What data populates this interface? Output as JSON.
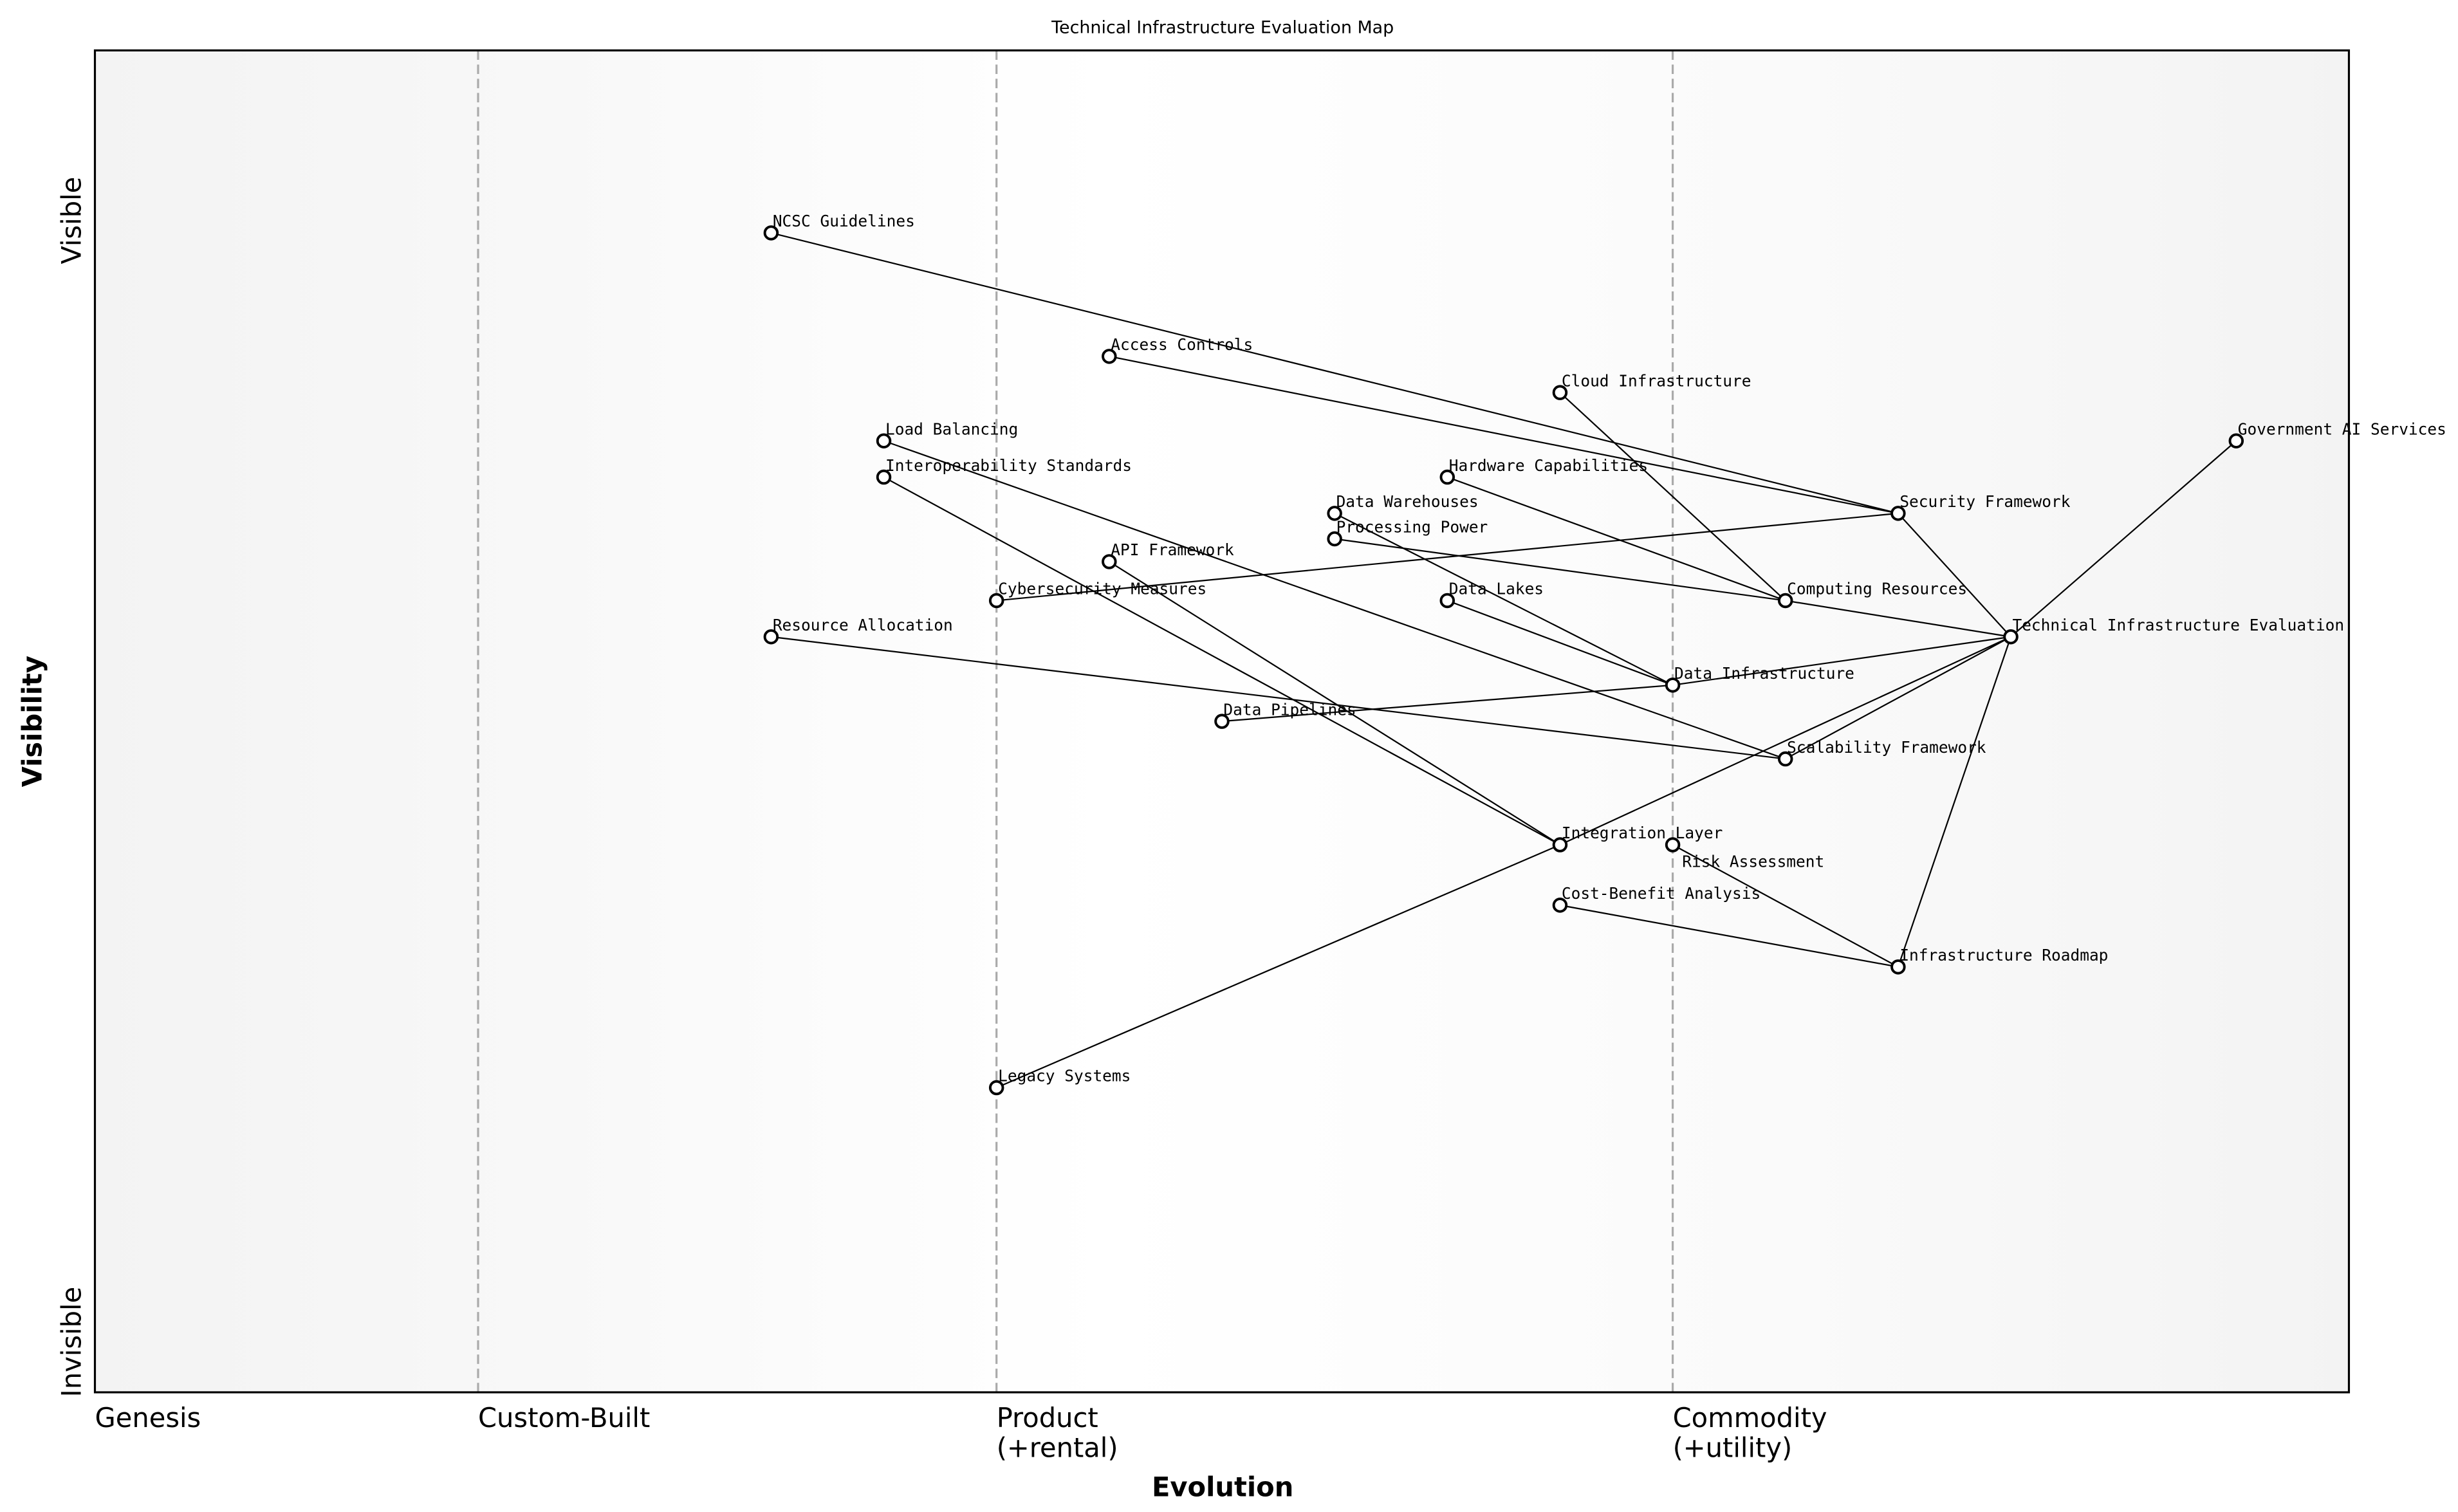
{
  "title": "Technical Infrastructure Evaluation Map",
  "x_axis": {
    "title": "Evolution",
    "stages": [
      {
        "label": "Genesis",
        "sub": "",
        "position": 0.0
      },
      {
        "label": "Custom-Built",
        "sub": "",
        "position": 0.17
      },
      {
        "label": "Product",
        "sub": "(+rental)",
        "position": 0.4
      },
      {
        "label": "Commodity",
        "sub": "(+utility)",
        "position": 0.7
      }
    ],
    "range": [
      0,
      1
    ]
  },
  "y_axis": {
    "title": "Visibility",
    "top_label": "Visible",
    "bottom_label": "Invisible",
    "range": [
      0,
      1
    ]
  },
  "colors": {
    "line": "#000000",
    "stage_divider": "#aaaaaa",
    "node_fill": "#ffffff",
    "node_stroke": "#000000",
    "band_dark": "#f3f3f3",
    "band_light": "#ffffff"
  },
  "components": [
    {
      "name": "NCSC Guidelines",
      "evolution": 0.3,
      "visibility": 0.864
    },
    {
      "name": "Access Controls",
      "evolution": 0.45,
      "visibility": 0.772
    },
    {
      "name": "Cloud Infrastructure",
      "evolution": 0.65,
      "visibility": 0.745
    },
    {
      "name": "Load Balancing",
      "evolution": 0.35,
      "visibility": 0.709
    },
    {
      "name": "Government AI Services",
      "evolution": 0.95,
      "visibility": 0.709
    },
    {
      "name": "Interoperability Standards",
      "evolution": 0.35,
      "visibility": 0.682
    },
    {
      "name": "Hardware Capabilities",
      "evolution": 0.6,
      "visibility": 0.682
    },
    {
      "name": "Security Framework",
      "evolution": 0.8,
      "visibility": 0.655
    },
    {
      "name": "Data Warehouses",
      "evolution": 0.55,
      "visibility": 0.655
    },
    {
      "name": "Processing Power",
      "evolution": 0.55,
      "visibility": 0.636
    },
    {
      "name": "API Framework",
      "evolution": 0.45,
      "visibility": 0.619
    },
    {
      "name": "Cybersecurity Measures",
      "evolution": 0.4,
      "visibility": 0.59
    },
    {
      "name": "Data Lakes",
      "evolution": 0.6,
      "visibility": 0.59
    },
    {
      "name": "Computing Resources",
      "evolution": 0.75,
      "visibility": 0.59
    },
    {
      "name": "Resource Allocation",
      "evolution": 0.3,
      "visibility": 0.563
    },
    {
      "name": "Technical Infrastructure Evaluation",
      "evolution": 0.85,
      "visibility": 0.563
    },
    {
      "name": "Data Infrastructure",
      "evolution": 0.7,
      "visibility": 0.527
    },
    {
      "name": "Data Pipelines",
      "evolution": 0.5,
      "visibility": 0.5
    },
    {
      "name": "Scalability Framework",
      "evolution": 0.75,
      "visibility": 0.472
    },
    {
      "name": "Integration Layer",
      "evolution": 0.65,
      "visibility": 0.408
    },
    {
      "name": "Risk Assessment",
      "evolution": 0.7,
      "visibility": 0.408
    },
    {
      "name": "Cost-Benefit Analysis",
      "evolution": 0.65,
      "visibility": 0.363
    },
    {
      "name": "Infrastructure Roadmap",
      "evolution": 0.8,
      "visibility": 0.317
    },
    {
      "name": "Legacy Systems",
      "evolution": 0.4,
      "visibility": 0.227
    }
  ],
  "links": [
    [
      "Government AI Services",
      "Technical Infrastructure Evaluation"
    ],
    [
      "Security Framework",
      "Technical Infrastructure Evaluation"
    ],
    [
      "Computing Resources",
      "Technical Infrastructure Evaluation"
    ],
    [
      "Data Infrastructure",
      "Technical Infrastructure Evaluation"
    ],
    [
      "Scalability Framework",
      "Technical Infrastructure Evaluation"
    ],
    [
      "Integration Layer",
      "Technical Infrastructure Evaluation"
    ],
    [
      "Infrastructure Roadmap",
      "Technical Infrastructure Evaluation"
    ],
    [
      "NCSC Guidelines",
      "Security Framework"
    ],
    [
      "Access Controls",
      "Security Framework"
    ],
    [
      "Cybersecurity Measures",
      "Security Framework"
    ],
    [
      "Cloud Infrastructure",
      "Computing Resources"
    ],
    [
      "Hardware Capabilities",
      "Computing Resources"
    ],
    [
      "Processing Power",
      "Computing Resources"
    ],
    [
      "Data Warehouses",
      "Data Infrastructure"
    ],
    [
      "Data Lakes",
      "Data Infrastructure"
    ],
    [
      "Data Pipelines",
      "Data Infrastructure"
    ],
    [
      "Load Balancing",
      "Scalability Framework"
    ],
    [
      "Resource Allocation",
      "Scalability Framework"
    ],
    [
      "Interoperability Standards",
      "Integration Layer"
    ],
    [
      "API Framework",
      "Integration Layer"
    ],
    [
      "Legacy Systems",
      "Integration Layer"
    ],
    [
      "Cost-Benefit Analysis",
      "Infrastructure Roadmap"
    ],
    [
      "Risk Assessment",
      "Infrastructure Roadmap"
    ]
  ]
}
